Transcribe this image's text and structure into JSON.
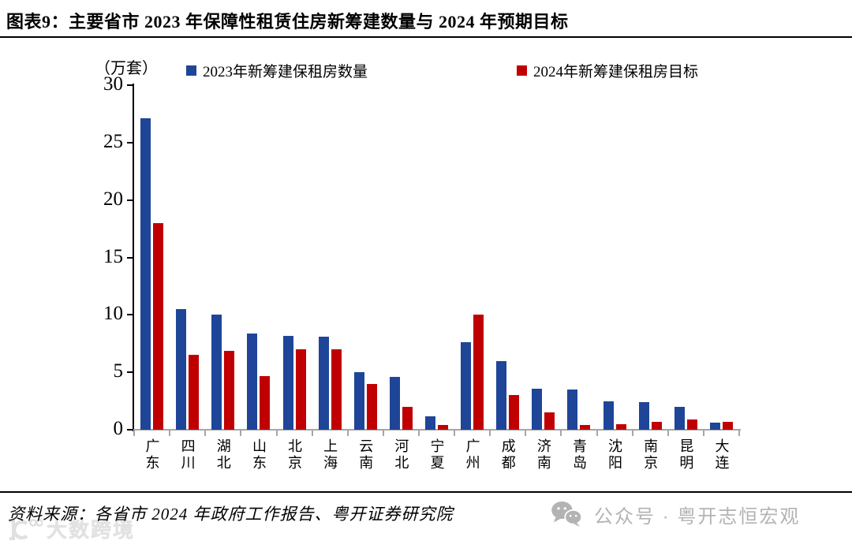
{
  "header": {
    "title": "图表9：主要省市 2023 年保障性租赁住房新筹建数量与 2024 年预期目标"
  },
  "chart_data": {
    "type": "bar",
    "title": "主要省市2023年保障性租赁住房新筹建数量与2024年预期目标",
    "unit_label": "（万套）",
    "categories": [
      "广东",
      "四川",
      "湖北",
      "山东",
      "北京",
      "上海",
      "云南",
      "河北",
      "宁夏",
      "广州",
      "成都",
      "济南",
      "青岛",
      "沈阳",
      "南京",
      "昆明",
      "大连"
    ],
    "series": [
      {
        "name": "2023年新筹建保租房数量",
        "color": "#1e4598",
        "values": [
          27.1,
          10.5,
          10.0,
          8.4,
          8.2,
          8.1,
          5.0,
          4.6,
          1.2,
          7.6,
          6.0,
          3.6,
          3.5,
          2.5,
          2.4,
          2.0,
          0.6
        ]
      },
      {
        "name": "2024年新筹建保租房目标",
        "color": "#c00000",
        "values": [
          18.0,
          6.5,
          6.9,
          4.7,
          7.0,
          7.0,
          4.0,
          2.0,
          0.4,
          10.0,
          3.0,
          1.5,
          0.4,
          0.5,
          0.7,
          0.9,
          0.7
        ]
      }
    ],
    "xlabel": "",
    "ylabel": "（万套）",
    "ylim": [
      0,
      30
    ],
    "yticks": [
      0,
      5,
      10,
      15,
      20,
      25,
      30
    ],
    "grid": false,
    "legend_position": "top"
  },
  "footer": {
    "source": "资料来源：各省市 2024 年政府工作报告、粤开证券研究院",
    "wechat_label": "公众号 · 粤开志恒宏观",
    "watermark": "大数跨境"
  },
  "colors": {
    "bar_2023": "#1e4598",
    "bar_2024": "#c00000",
    "axis_gray": "#a6a6a6",
    "footer_gray": "#b3b3b3",
    "watermark_gray": "#e2e2e2"
  }
}
